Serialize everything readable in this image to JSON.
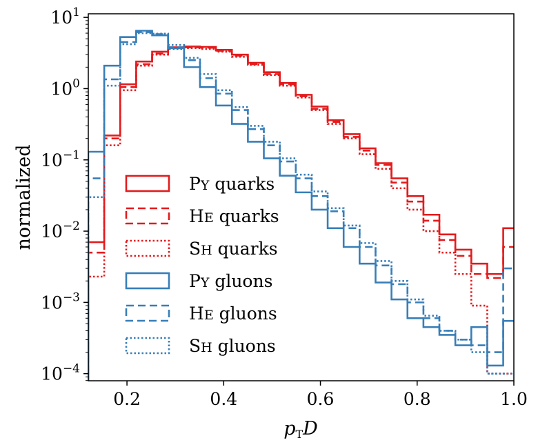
{
  "chart_data": {
    "type": "step-histogram",
    "xlabel": "p_T D",
    "xlabel_main": "p",
    "xlabel_sub": "T",
    "xlabel_tail": "D",
    "ylabel": "normalized",
    "xlim": [
      0.12,
      1.0
    ],
    "ylim_log10": [
      -4.1,
      1.05
    ],
    "y_scale": "log",
    "x_ticks": [
      {
        "value": 0.2,
        "label": "0.2"
      },
      {
        "value": 0.4,
        "label": "0.4"
      },
      {
        "value": 0.6,
        "label": "0.6"
      },
      {
        "value": 0.8,
        "label": "0.8"
      },
      {
        "value": 1.0,
        "label": "1.0"
      }
    ],
    "y_ticks": [
      {
        "exp": 1,
        "base": "10",
        "sup": "1"
      },
      {
        "exp": 0,
        "base": "10",
        "sup": "0"
      },
      {
        "exp": -1,
        "base": "10",
        "sup": "−1"
      },
      {
        "exp": -2,
        "base": "10",
        "sup": "−2"
      },
      {
        "exp": -3,
        "base": "10",
        "sup": "−3"
      },
      {
        "exp": -4,
        "base": "10",
        "sup": "−4"
      }
    ],
    "bin_edges": [
      0.12,
      0.153,
      0.186,
      0.219,
      0.252,
      0.285,
      0.318,
      0.351,
      0.384,
      0.417,
      0.45,
      0.483,
      0.516,
      0.549,
      0.582,
      0.615,
      0.648,
      0.681,
      0.714,
      0.747,
      0.78,
      0.813,
      0.846,
      0.879,
      0.912,
      0.945,
      0.978,
      1.0
    ],
    "legend": {
      "position": "lower-left"
    },
    "series": [
      {
        "name": "Py quarks",
        "legend_main": "P",
        "legend_small": "Y",
        "legend_rest": " quarks",
        "color": "#e41a1c",
        "style": "solid",
        "values": [
          0.007,
          0.22,
          1.15,
          2.4,
          3.3,
          3.8,
          3.9,
          3.85,
          3.5,
          3.0,
          2.3,
          1.7,
          1.2,
          0.82,
          0.56,
          0.36,
          0.23,
          0.145,
          0.09,
          0.055,
          0.031,
          0.017,
          0.009,
          0.0055,
          0.0035,
          0.0025,
          0.011
        ]
      },
      {
        "name": "He quarks",
        "legend_main": "H",
        "legend_small": "E",
        "legend_rest": " quarks",
        "color": "#e41a1c",
        "style": "dashed",
        "values": [
          0.005,
          0.2,
          1.05,
          2.2,
          3.1,
          3.7,
          3.8,
          3.75,
          3.4,
          2.9,
          2.2,
          1.6,
          1.15,
          0.78,
          0.52,
          0.34,
          0.21,
          0.135,
          0.085,
          0.048,
          0.026,
          0.014,
          0.0075,
          0.0045,
          0.0025,
          0.0022,
          0.006
        ]
      },
      {
        "name": "Sh quarks",
        "legend_main": "S",
        "legend_small": "H",
        "legend_rest": " quarks",
        "color": "#e41a1c",
        "style": "dotted",
        "values": [
          0.0023,
          0.16,
          0.95,
          2.1,
          3.0,
          3.6,
          3.7,
          3.6,
          3.3,
          2.8,
          2.15,
          1.55,
          1.1,
          0.75,
          0.5,
          0.32,
          0.2,
          0.12,
          0.075,
          0.04,
          0.02,
          0.01,
          0.005,
          0.0025,
          0.0009,
          0.0001,
          0.0001
        ]
      },
      {
        "name": "Py gluons",
        "legend_main": "P",
        "legend_small": "Y",
        "legend_rest": " gluons",
        "color": "#377eb8",
        "style": "solid",
        "values": [
          0.13,
          2.1,
          5.3,
          6.5,
          5.6,
          3.7,
          2.0,
          1.05,
          0.58,
          0.32,
          0.18,
          0.105,
          0.06,
          0.035,
          0.02,
          0.011,
          0.006,
          0.0035,
          0.0019,
          0.0011,
          0.0006,
          0.00045,
          0.00035,
          0.00025,
          0.00045,
          0.00013,
          0.00055
        ]
      },
      {
        "name": "He gluons",
        "legend_main": "H",
        "legend_small": "E",
        "legend_rest": " gluons",
        "color": "#377eb8",
        "style": "dashed",
        "values": [
          0.055,
          1.35,
          4.5,
          6.2,
          5.8,
          3.8,
          2.5,
          1.4,
          0.85,
          0.5,
          0.27,
          0.16,
          0.095,
          0.055,
          0.031,
          0.019,
          0.011,
          0.006,
          0.0033,
          0.0018,
          0.001,
          0.0006,
          0.0004,
          0.0003,
          0.00025,
          0.0002,
          0.003
        ]
      },
      {
        "name": "Sh gluons",
        "legend_main": "S",
        "legend_small": "H",
        "legend_rest": " gluons",
        "color": "#377eb8",
        "style": "dotted",
        "values": [
          0.03,
          1.1,
          4.2,
          6.0,
          5.9,
          4.1,
          2.7,
          1.6,
          0.95,
          0.55,
          0.3,
          0.18,
          0.105,
          0.062,
          0.036,
          0.021,
          0.012,
          0.0068,
          0.0038,
          0.002,
          0.0011,
          0.00065,
          0.0004,
          0.0003,
          0.0002,
          0.0001,
          0.0001
        ]
      }
    ]
  }
}
